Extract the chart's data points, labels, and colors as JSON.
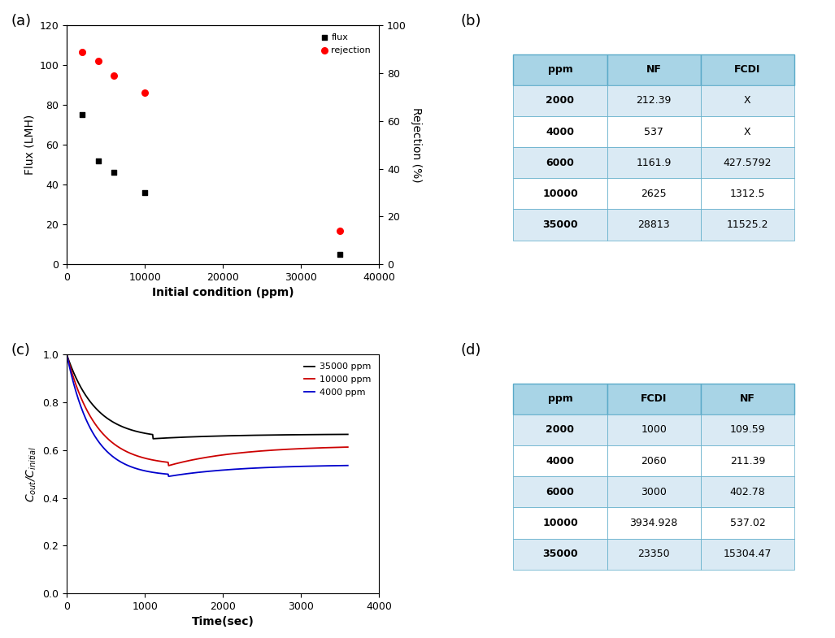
{
  "panel_a": {
    "flux_x": [
      2000,
      4000,
      6000,
      10000,
      35000
    ],
    "flux_y": [
      75,
      52,
      46,
      36,
      5
    ],
    "rejection_x": [
      2000,
      4000,
      6000,
      10000,
      35000
    ],
    "rejection_y": [
      89,
      85,
      79,
      72,
      14
    ],
    "xlabel": "Initial condition (ppm)",
    "ylabel_left": "Flux (LMH)",
    "ylabel_right": "Rejection (%)",
    "xlim": [
      0,
      40000
    ],
    "ylim_left": [
      0,
      120
    ],
    "ylim_right": [
      0,
      100
    ],
    "yticks_left": [
      0,
      20,
      40,
      60,
      80,
      100,
      120
    ],
    "yticks_right": [
      0,
      20,
      40,
      60,
      80,
      100
    ],
    "xticks": [
      0,
      10000,
      20000,
      30000,
      40000
    ],
    "legend_flux": "flux",
    "legend_rejection": "rejection"
  },
  "panel_b": {
    "headers": [
      "ppm",
      "NF",
      "FCDI"
    ],
    "rows": [
      [
        "2000",
        "212.39",
        "X"
      ],
      [
        "4000",
        "537",
        "X"
      ],
      [
        "6000",
        "1161.9",
        "427.5792"
      ],
      [
        "10000",
        "2625",
        "1312.5"
      ],
      [
        "35000",
        "28813",
        "11525.2"
      ]
    ],
    "header_bg": "#a8d4e6",
    "row_bg_odd": "#daeaf4",
    "row_bg_even": "#ffffff"
  },
  "panel_c": {
    "t_max": 3600,
    "xlabel": "Time(sec)",
    "ylabel": "C$_{out}$/C$_{initial}$",
    "xlim": [
      0,
      4000
    ],
    "ylim": [
      0.0,
      1.0
    ],
    "xticks": [
      0,
      1000,
      2000,
      3000,
      4000
    ],
    "yticks": [
      0.0,
      0.2,
      0.4,
      0.6,
      0.8,
      1.0
    ],
    "curves": [
      {
        "label": "35000 ppm",
        "color": "#000000",
        "min_val": 0.648,
        "final_val": 0.668,
        "min_time": 1100,
        "drop_rate": 3.0
      },
      {
        "label": "10000 ppm",
        "color": "#cc0000",
        "min_val": 0.535,
        "final_val": 0.62,
        "min_time": 1300,
        "drop_rate": 3.5
      },
      {
        "label": "4000 ppm",
        "color": "#0000cc",
        "min_val": 0.49,
        "final_val": 0.54,
        "min_time": 1300,
        "drop_rate": 4.0
      }
    ]
  },
  "panel_d": {
    "headers": [
      "ppm",
      "FCDI",
      "NF"
    ],
    "rows": [
      [
        "2000",
        "1000",
        "109.59"
      ],
      [
        "4000",
        "2060",
        "211.39"
      ],
      [
        "6000",
        "3000",
        "402.78"
      ],
      [
        "10000",
        "3934.928",
        "537.02"
      ],
      [
        "35000",
        "23350",
        "15304.47"
      ]
    ],
    "header_bg": "#a8d4e6",
    "row_bg_odd": "#daeaf4",
    "row_bg_even": "#ffffff"
  },
  "label_fontsize": 10,
  "tick_fontsize": 9,
  "panel_label_fontsize": 13
}
